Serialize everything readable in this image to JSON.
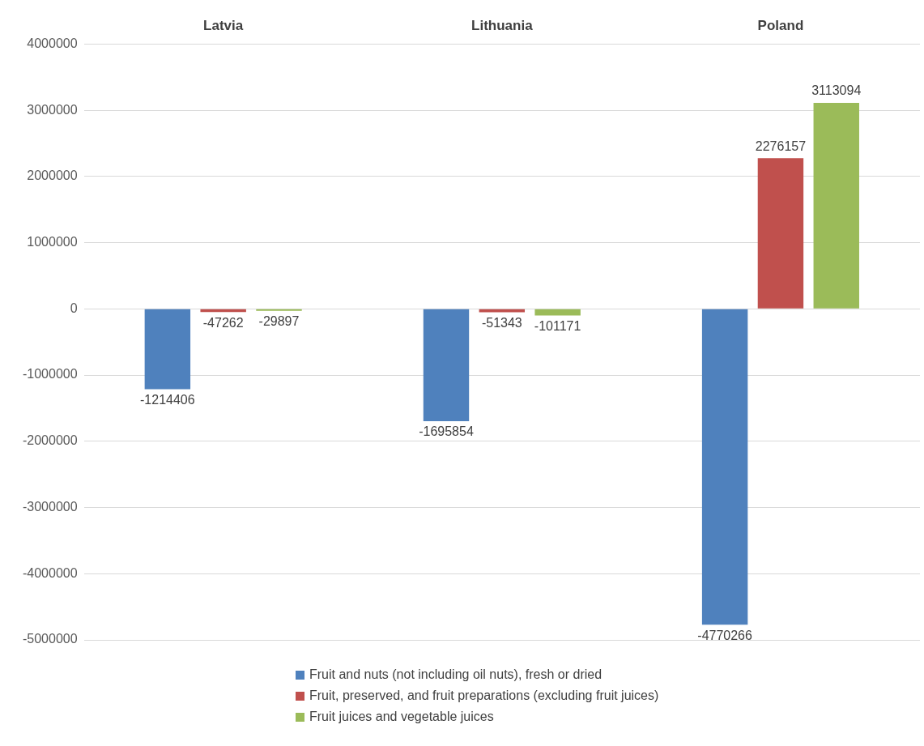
{
  "chart_data": {
    "type": "bar",
    "categories": [
      "Latvia",
      "Lithuania",
      "Poland"
    ],
    "series": [
      {
        "name": "Fruit and nuts (not including oil nuts), fresh or dried",
        "color": "#4f81bd",
        "values": [
          -1214406,
          -1695854,
          -4770266
        ]
      },
      {
        "name": "Fruit, preserved, and fruit preparations (excluding fruit juices)",
        "color": "#c0504d",
        "values": [
          -47262,
          -51343,
          2276157
        ]
      },
      {
        "name": "Fruit juices and vegetable juices",
        "color": "#9bbb59",
        "values": [
          -29897,
          -101171,
          3113094
        ]
      }
    ],
    "ylim": [
      -5000000,
      4000000
    ],
    "yticks": [
      -5000000,
      -4000000,
      -3000000,
      -2000000,
      -1000000,
      0,
      1000000,
      2000000,
      3000000,
      4000000
    ],
    "grid": "y",
    "legend": "bottom",
    "data_labels": true
  }
}
